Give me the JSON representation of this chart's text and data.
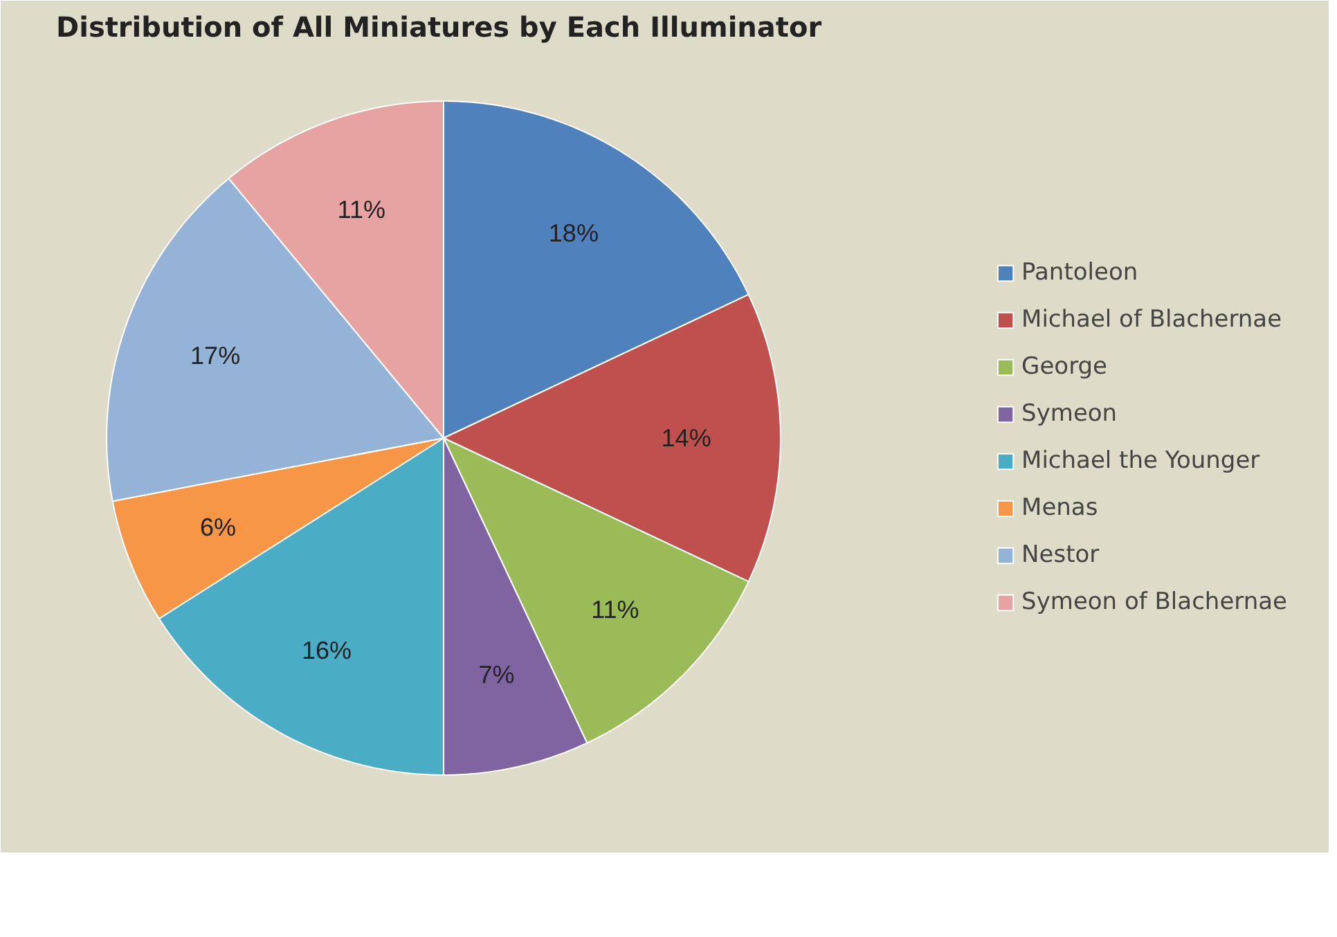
{
  "chart_data": {
    "type": "pie",
    "title": "Distribution of All Miniatures by Each Illuminator",
    "categories": [
      "Pantoleon",
      "Michael of Blachernae",
      "George",
      "Symeon",
      "Michael the Younger",
      "Menas",
      "Nestor",
      "Symeon of Blachernae"
    ],
    "values": [
      18,
      14,
      11,
      7,
      16,
      6,
      17,
      11
    ],
    "value_labels": [
      "18%",
      "14%",
      "11%",
      "7%",
      "16%",
      "6%",
      "17%",
      "11%"
    ],
    "colors": [
      "#4f81bd",
      "#c0504d",
      "#9bbb59",
      "#8064a2",
      "#4bacc6",
      "#f79646",
      "#95b3d7",
      "#e6a3a1"
    ],
    "legend": "right"
  }
}
